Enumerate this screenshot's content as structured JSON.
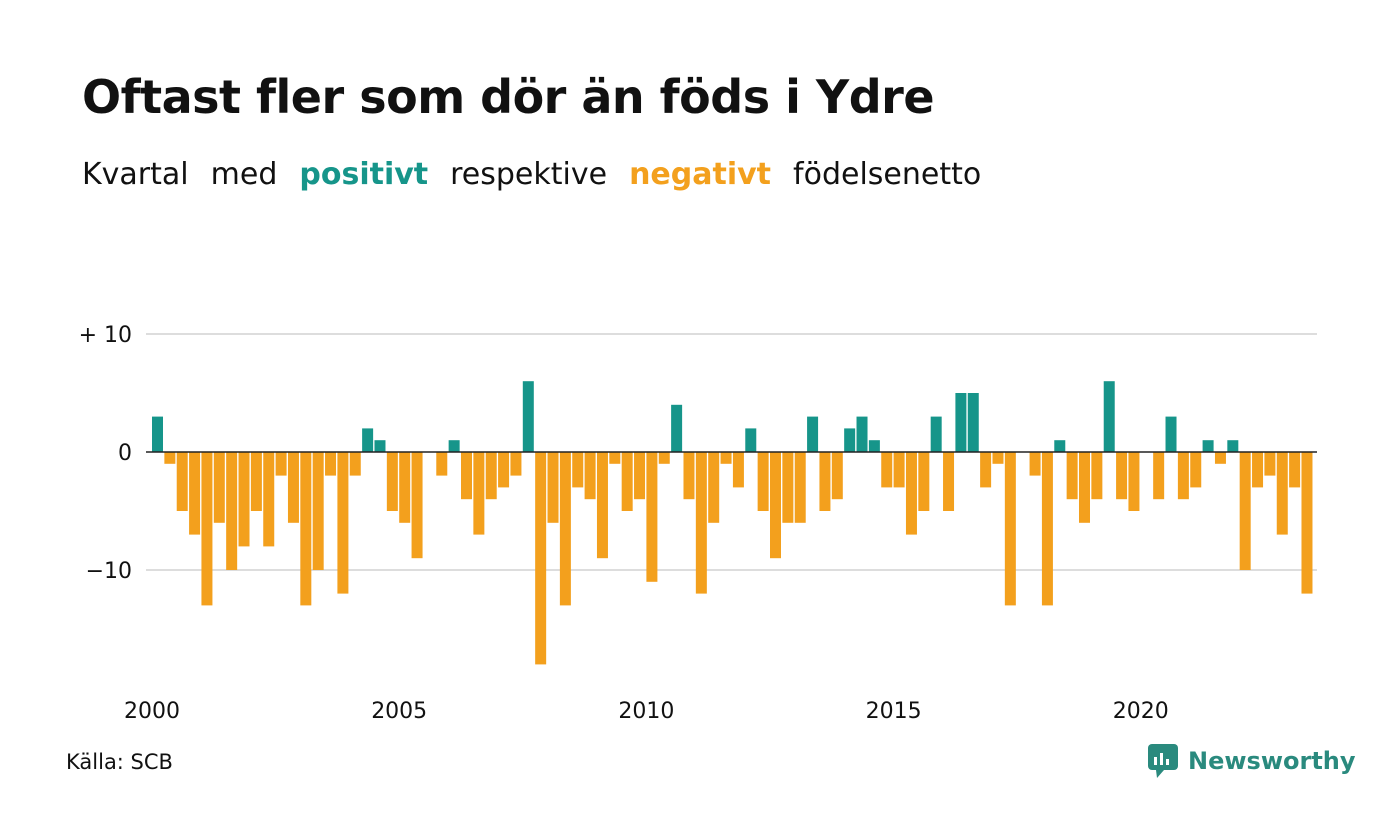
{
  "title": "Oftast fler som dör än föds i Ydre",
  "subtitle": {
    "w1": "Kvartal",
    "w2": "med",
    "positive": "positivt",
    "w3": "respektive",
    "negative": "negativt",
    "w4": "födelsenetto"
  },
  "source": "Källa: SCB",
  "brand": "Newsworthy",
  "colors": {
    "positive": "#16958a",
    "negative": "#f3a01d",
    "grid": "#dddddd",
    "zero": "#222222"
  },
  "chart_data": {
    "type": "bar",
    "x_start": "2000 Q1",
    "x_ticks": [
      "2000",
      "2005",
      "2010",
      "2015",
      "2020"
    ],
    "y_ticks": [
      "+ 10",
      "0",
      "−10"
    ],
    "ylim": [
      -18,
      10
    ],
    "grid": true,
    "values": [
      3,
      -1,
      -5,
      -7,
      -13,
      -6,
      -10,
      -8,
      -5,
      -8,
      -2,
      -6,
      -13,
      -10,
      -2,
      -12,
      -2,
      2,
      1,
      -5,
      -6,
      -9,
      0,
      -2,
      1,
      -4,
      -7,
      -4,
      -3,
      -2,
      6,
      -18,
      -6,
      -13,
      -3,
      -4,
      -9,
      -1,
      -5,
      -4,
      -11,
      -1,
      4,
      -4,
      -12,
      -6,
      -1,
      -3,
      2,
      -5,
      -9,
      -6,
      -6,
      3,
      -5,
      -4,
      2,
      3,
      1,
      -3,
      -3,
      -7,
      -5,
      3,
      -5,
      5,
      5,
      -3,
      -1,
      -13,
      0,
      -2,
      -13,
      1,
      -4,
      -6,
      -4,
      6,
      -4,
      -5,
      0,
      -4,
      3,
      -4,
      -3,
      1,
      -1,
      1,
      -10,
      -3,
      -2,
      -7,
      -3,
      -12
    ]
  }
}
